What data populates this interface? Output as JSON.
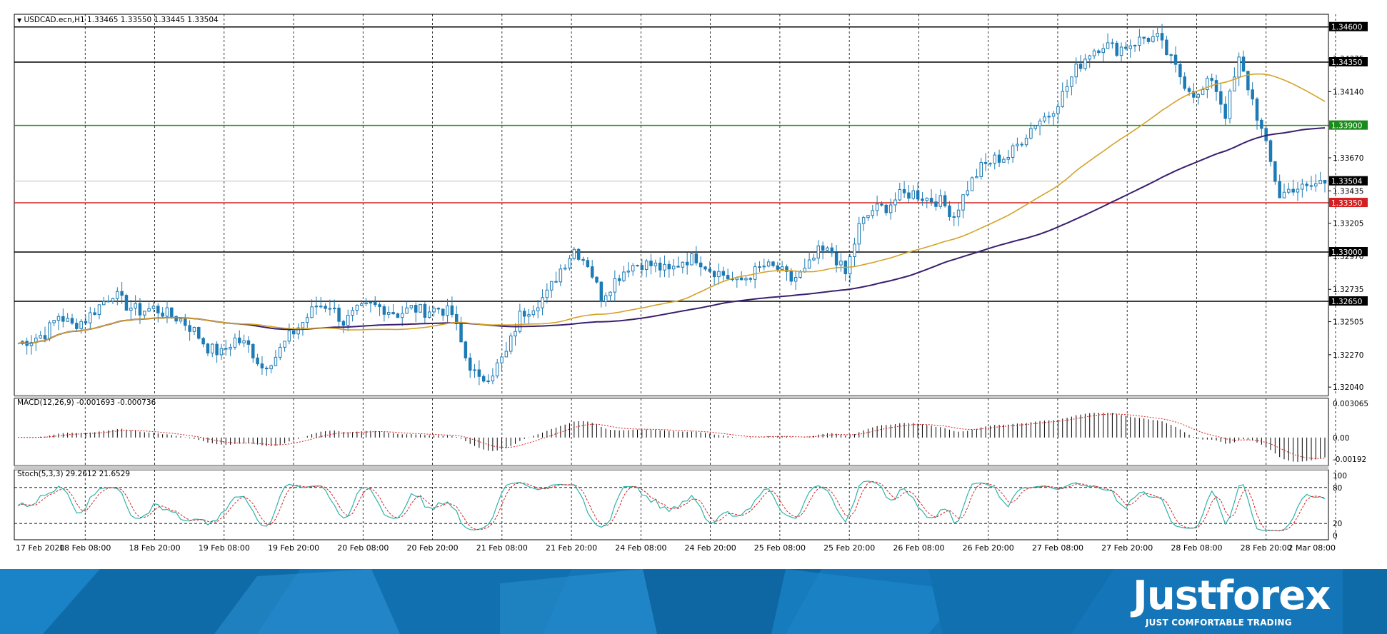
{
  "header": {
    "symbol_line": "USDCAD.ecn,H1  1.33465 1.33550 1.33445 1.33504",
    "macd_label": "MACD(12,26,9) -0.001693 -0.000736",
    "stoch_label": "Stoch(5,3,3) 29.2612 21.6529"
  },
  "brand": {
    "name": "Justforex",
    "tagline": "JUST COMFORTABLE TRADING"
  },
  "colors": {
    "candle": "#1c7ab5",
    "ma_fast": "#d4a22a",
    "ma_slow": "#3a1f6e",
    "level_green": "#1a8a1a",
    "level_red": "#d42020",
    "level_black": "#000000",
    "macd_signal": "#d42020",
    "stoch_main": "#2fb3a8",
    "stoch_signal": "#d42020",
    "footer_blue": "#1476b8"
  },
  "chart_data": [
    {
      "type": "candlestick",
      "symbol": "USDCAD.ecn",
      "timeframe": "H1",
      "ohlc_last": {
        "open": 1.33465,
        "high": 1.3355,
        "low": 1.33445,
        "close": 1.33504
      },
      "ylim": [
        1.3198,
        1.3469
      ],
      "price_ticks": [
        "1.34600",
        "1.34375",
        "1.34350",
        "1.34140",
        "1.33900",
        "1.33670",
        "1.33504",
        "1.33435",
        "1.33350",
        "1.33205",
        "1.33000",
        "1.32970",
        "1.32735",
        "1.32650",
        "1.32505",
        "1.32270",
        "1.32040"
      ],
      "x_labels": [
        "17 Feb 2020",
        "18 Feb 08:00",
        "18 Feb 20:00",
        "19 Feb 08:00",
        "19 Feb 20:00",
        "20 Feb 08:00",
        "20 Feb 20:00",
        "21 Feb 08:00",
        "21 Feb 20:00",
        "24 Feb 08:00",
        "24 Feb 20:00",
        "25 Feb 08:00",
        "25 Feb 20:00",
        "26 Feb 08:00",
        "26 Feb 20:00",
        "27 Feb 08:00",
        "27 Feb 20:00",
        "28 Feb 08:00",
        "28 Feb 20:00",
        "2 Mar 08:00"
      ],
      "price_path": [
        [
          0,
          1.3235
        ],
        [
          3,
          1.3238
        ],
        [
          6,
          1.3242
        ],
        [
          9,
          1.3255
        ],
        [
          12,
          1.3248
        ],
        [
          15,
          1.3252
        ],
        [
          18,
          1.3262
        ],
        [
          21,
          1.3271
        ],
        [
          24,
          1.3262
        ],
        [
          27,
          1.3258
        ],
        [
          30,
          1.326
        ],
        [
          33,
          1.3256
        ],
        [
          36,
          1.3252
        ],
        [
          39,
          1.3244
        ],
        [
          42,
          1.3232
        ],
        [
          45,
          1.3228
        ],
        [
          48,
          1.3238
        ],
        [
          51,
          1.3233
        ],
        [
          54,
          1.3218
        ],
        [
          57,
          1.3226
        ],
        [
          60,
          1.324
        ],
        [
          63,
          1.325
        ],
        [
          66,
          1.3262
        ],
        [
          69,
          1.3262
        ],
        [
          72,
          1.325
        ],
        [
          75,
          1.3258
        ],
        [
          78,
          1.3262
        ],
        [
          81,
          1.326
        ],
        [
          84,
          1.3256
        ],
        [
          87,
          1.326
        ],
        [
          90,
          1.3258
        ],
        [
          93,
          1.326
        ],
        [
          96,
          1.3256
        ],
        [
          99,
          1.3225
        ],
        [
          102,
          1.3208
        ],
        [
          105,
          1.3215
        ],
        [
          108,
          1.3228
        ],
        [
          111,
          1.3255
        ],
        [
          114,
          1.3262
        ],
        [
          117,
          1.327
        ],
        [
          120,
          1.3288
        ],
        [
          123,
          1.3302
        ],
        [
          126,
          1.3292
        ],
        [
          129,
          1.3268
        ],
        [
          132,
          1.328
        ],
        [
          135,
          1.329
        ],
        [
          138,
          1.3292
        ],
        [
          141,
          1.329
        ],
        [
          144,
          1.3286
        ],
        [
          147,
          1.3294
        ],
        [
          150,
          1.3296
        ],
        [
          153,
          1.3288
        ],
        [
          156,
          1.3284
        ],
        [
          159,
          1.3278
        ],
        [
          162,
          1.3284
        ],
        [
          165,
          1.329
        ],
        [
          168,
          1.3288
        ],
        [
          171,
          1.328
        ],
        [
          174,
          1.3286
        ],
        [
          177,
          1.33
        ],
        [
          180,
          1.33
        ],
        [
          183,
          1.3284
        ],
        [
          186,
          1.3318
        ],
        [
          189,
          1.333
        ],
        [
          192,
          1.3332
        ],
        [
          195,
          1.334
        ],
        [
          198,
          1.3342
        ],
        [
          201,
          1.3338
        ],
        [
          204,
          1.3336
        ],
        [
          207,
          1.3326
        ],
        [
          210,
          1.3346
        ],
        [
          213,
          1.336
        ],
        [
          216,
          1.3366
        ],
        [
          219,
          1.3368
        ],
        [
          222,
          1.338
        ],
        [
          225,
          1.3392
        ],
        [
          228,
          1.3398
        ],
        [
          231,
          1.3412
        ],
        [
          234,
          1.343
        ],
        [
          237,
          1.3442
        ],
        [
          240,
          1.3448
        ],
        [
          243,
          1.3444
        ],
        [
          246,
          1.3448
        ],
        [
          249,
          1.3452
        ],
        [
          252,
          1.3452
        ],
        [
          255,
          1.3436
        ],
        [
          258,
          1.342
        ],
        [
          261,
          1.341
        ],
        [
          264,
          1.3424
        ],
        [
          267,
          1.3398
        ],
        [
          270,
          1.3436
        ],
        [
          273,
          1.3408
        ],
        [
          276,
          1.3375
        ],
        [
          279,
          1.334
        ],
        [
          282,
          1.3346
        ],
        [
          285,
          1.3345
        ],
        [
          288,
          1.335
        ]
      ],
      "series": [
        {
          "name": "Moving Average (fast)",
          "color": "#d4a22a"
        },
        {
          "name": "Moving Average (slow)",
          "color": "#3a1f6e"
        }
      ],
      "horizontal_levels": [
        {
          "value": 1.346,
          "label": "1.34600",
          "color": "#000000"
        },
        {
          "value": 1.3435,
          "label": "1.34350",
          "color": "#000000"
        },
        {
          "value": 1.339,
          "label": "1.33900",
          "color": "#1a8a1a"
        },
        {
          "value": 1.33504,
          "label": "1.33504",
          "color": "#000000"
        },
        {
          "value": 1.3335,
          "label": "1.33350",
          "color": "#d42020"
        },
        {
          "value": 1.33,
          "label": "1.33000",
          "color": "#000000"
        },
        {
          "value": 1.3265,
          "label": "1.32650",
          "color": "#000000"
        }
      ]
    },
    {
      "type": "histogram",
      "name": "MACD(12,26,9)",
      "values_last": {
        "macd": -0.001693,
        "signal": -0.000736
      },
      "ylim": [
        -0.0025,
        0.0035
      ],
      "ticks": [
        "0.003065",
        "0.00",
        "-0.00192"
      ]
    },
    {
      "type": "line",
      "name": "Stoch(5,3,3)",
      "values_last": {
        "main": 29.2612,
        "signal": 21.6529
      },
      "ylim": [
        0,
        100
      ],
      "ticks": [
        "100",
        "80",
        "20",
        "0"
      ],
      "levels": [
        80,
        20
      ]
    }
  ]
}
